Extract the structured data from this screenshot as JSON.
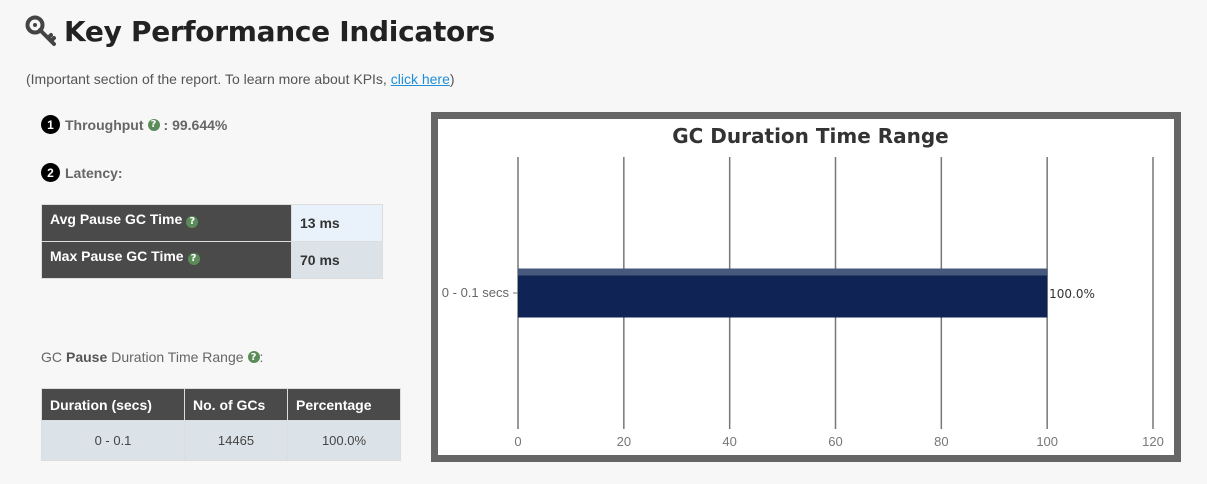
{
  "header": {
    "title": "Key Performance Indicators",
    "icon": "key-icon"
  },
  "intro": {
    "prefix": "(Important section of the report. To learn more about KPIs, ",
    "link": "click here",
    "suffix": ")"
  },
  "throughput": {
    "number": "1",
    "label": "Throughput",
    "value": ": 99.644%"
  },
  "latency": {
    "number": "2",
    "label": "Latency:",
    "rows": [
      {
        "label": "Avg Pause GC Time",
        "value": "13 ms"
      },
      {
        "label": "Max Pause GC Time",
        "value": "70 ms"
      }
    ]
  },
  "range_label": {
    "pre": "GC",
    "bold": "Pause",
    "post": "Duration Time Range",
    "suffix": ":"
  },
  "dist_table": {
    "headers": [
      "Duration (secs)",
      "No. of GCs",
      "Percentage"
    ],
    "rows": [
      [
        "0 - 0.1",
        "14465",
        "100.0%"
      ]
    ]
  },
  "colors": {
    "bar": "#0f2454",
    "help": "#5a8c5a",
    "link": "#1f8ed6",
    "header_bg": "#4a4a4a"
  },
  "chart_data": {
    "type": "bar",
    "orientation": "horizontal",
    "title": "GC Duration Time Range",
    "categories": [
      "0 - 0.1 secs"
    ],
    "values": [
      100.0
    ],
    "data_labels": [
      "100.0%"
    ],
    "xlim": [
      0,
      120
    ],
    "xticks": [
      0,
      20,
      40,
      60,
      80,
      100,
      120
    ],
    "xlabel": "",
    "ylabel": "",
    "grid": true
  }
}
